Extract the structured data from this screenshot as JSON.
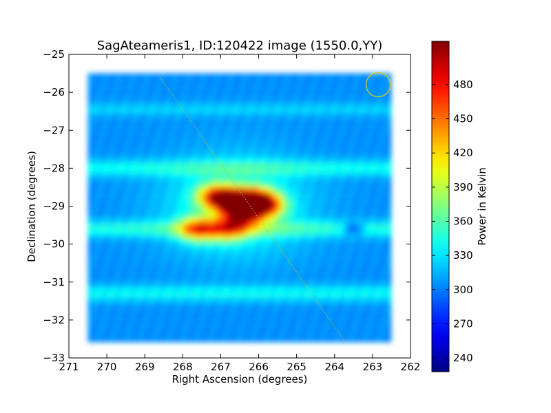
{
  "chart_data": {
    "type": "heatmap",
    "title": "SagAteameris1, ID:120422 image (1550.0,YY)",
    "xlabel": "Right Ascension (degrees)",
    "ylabel": "Declination (degrees)",
    "xlim": [
      271,
      262
    ],
    "ylim": [
      -33,
      -25
    ],
    "x_ticks": [
      271,
      270,
      269,
      268,
      267,
      266,
      265,
      264,
      263,
      262
    ],
    "y_ticks": [
      -25,
      -26,
      -27,
      -28,
      -29,
      -30,
      -31,
      -32,
      -33
    ],
    "colorbar": {
      "label": "Power in Kelvin",
      "range": [
        228,
        518
      ],
      "ticks": [
        240,
        270,
        300,
        330,
        360,
        390,
        420,
        450,
        480
      ],
      "colormap": "jet"
    },
    "image_extent": {
      "ra": [
        270.5,
        262.6
      ],
      "dec": [
        -32.5,
        -25.5
      ]
    },
    "base_level": 305,
    "bands": [
      {
        "dec": -28.0,
        "width": 0.15,
        "level": 340
      },
      {
        "dec": -29.6,
        "width": 0.15,
        "level": 345
      },
      {
        "dec": -31.3,
        "width": 0.15,
        "level": 338
      },
      {
        "dec": -26.45,
        "width": 0.12,
        "level": 325
      }
    ],
    "hotspots": [
      {
        "ra": 266.6,
        "dec": -28.9,
        "level": 470
      },
      {
        "ra": 267.1,
        "dec": -28.75,
        "level": 455
      },
      {
        "ra": 266.1,
        "dec": -28.85,
        "level": 470
      },
      {
        "ra": 266.4,
        "dec": -29.25,
        "level": 430
      },
      {
        "ra": 267.6,
        "dec": -29.6,
        "level": 420
      },
      {
        "ra": 266.8,
        "dec": -29.6,
        "level": 400
      },
      {
        "ra": 265.8,
        "dec": -29.0,
        "level": 420
      }
    ],
    "coldspots": [
      {
        "ra": 263.5,
        "dec": -29.6,
        "level": 245
      }
    ],
    "overlay_line": {
      "start": {
        "ra": 268.6,
        "dec": -25.6
      },
      "end": {
        "ra": 263.7,
        "dec": -32.6
      },
      "color": "#b8c43a"
    },
    "overlay_circle": {
      "ra": 262.85,
      "dec": -25.8,
      "radius_deg": 0.32,
      "color": "#c8c82a"
    }
  }
}
